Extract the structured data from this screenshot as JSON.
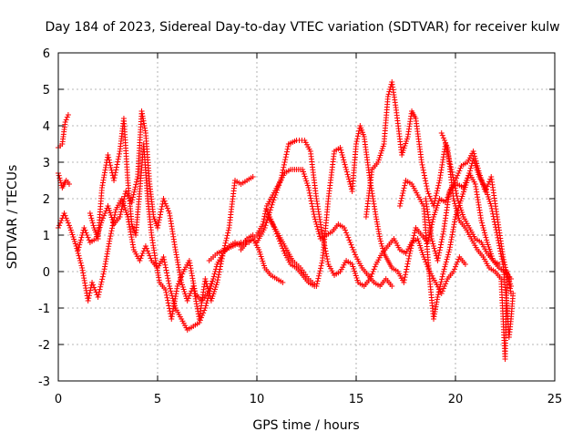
{
  "chart_data": {
    "type": "scatter",
    "title": "Day 184 of 2023, Sidereal Day-to-day VTEC variation (SDTVAR) for receiver kulw",
    "xlabel": "GPS time / hours",
    "ylabel": "SDTVAR / TECUs",
    "xlim": [
      0,
      25
    ],
    "ylim": [
      -3,
      6
    ],
    "xticks": [
      0,
      5,
      10,
      15,
      20,
      25
    ],
    "yticks": [
      -3,
      -2,
      -1,
      0,
      1,
      2,
      3,
      4,
      5,
      6
    ],
    "grid": true,
    "marker": "+",
    "color": "#ff0000",
    "series": [
      {
        "name": "track-1",
        "points": [
          [
            0.0,
            3.4
          ],
          [
            0.2,
            3.5
          ],
          [
            0.35,
            4.1
          ],
          [
            0.5,
            4.3
          ]
        ]
      },
      {
        "name": "track-2",
        "points": [
          [
            0.0,
            2.7
          ],
          [
            0.2,
            2.3
          ],
          [
            0.4,
            2.5
          ],
          [
            0.55,
            2.4
          ]
        ]
      },
      {
        "name": "track-3",
        "points": [
          [
            0.0,
            1.2
          ],
          [
            0.3,
            1.6
          ],
          [
            0.6,
            1.2
          ],
          [
            0.9,
            0.7
          ],
          [
            1.2,
            0.1
          ],
          [
            1.5,
            -0.8
          ],
          [
            1.7,
            -0.3
          ],
          [
            2.0,
            -0.7
          ],
          [
            2.3,
            0.0
          ],
          [
            2.6,
            0.9
          ],
          [
            2.9,
            1.7
          ],
          [
            3.2,
            2.0
          ],
          [
            3.5,
            1.5
          ],
          [
            3.8,
            0.6
          ],
          [
            4.1,
            0.3
          ],
          [
            4.4,
            0.7
          ],
          [
            4.7,
            0.3
          ],
          [
            5.0,
            0.1
          ],
          [
            5.3,
            0.4
          ],
          [
            5.6,
            -0.4
          ],
          [
            5.9,
            -1.0
          ],
          [
            6.2,
            -1.3
          ],
          [
            6.5,
            -1.6
          ],
          [
            6.8,
            -1.5
          ],
          [
            7.1,
            -1.4
          ],
          [
            7.4,
            -1.0
          ],
          [
            7.7,
            -0.4
          ],
          [
            8.0,
            0.2
          ],
          [
            8.3,
            0.5
          ],
          [
            8.6,
            0.7
          ],
          [
            8.9,
            0.8
          ],
          [
            9.2,
            0.7
          ],
          [
            9.5,
            0.9
          ],
          [
            9.8,
            1.0
          ]
        ]
      },
      {
        "name": "track-4",
        "points": [
          [
            1.6,
            1.6
          ],
          [
            1.8,
            1.2
          ],
          [
            2.0,
            0.9
          ],
          [
            2.2,
            2.3
          ],
          [
            2.5,
            3.2
          ],
          [
            2.8,
            2.5
          ],
          [
            3.1,
            3.3
          ],
          [
            3.3,
            4.2
          ],
          [
            3.5,
            2.5
          ],
          [
            3.7,
            1.3
          ],
          [
            3.9,
            1.0
          ],
          [
            4.1,
            2.2
          ],
          [
            4.3,
            3.5
          ],
          [
            4.5,
            2.0
          ],
          [
            4.7,
            1.0
          ],
          [
            4.9,
            0.3
          ],
          [
            5.1,
            -0.3
          ],
          [
            5.4,
            -0.5
          ],
          [
            5.7,
            -1.3
          ],
          [
            6.0,
            -0.4
          ],
          [
            6.3,
            0.0
          ],
          [
            6.6,
            0.3
          ],
          [
            6.9,
            -0.6
          ],
          [
            7.2,
            -0.8
          ],
          [
            7.5,
            -0.6
          ],
          [
            7.8,
            -0.2
          ]
        ]
      },
      {
        "name": "track-5",
        "points": [
          [
            1.0,
            0.6
          ],
          [
            1.3,
            1.2
          ],
          [
            1.6,
            0.8
          ],
          [
            1.9,
            0.9
          ],
          [
            2.2,
            1.4
          ],
          [
            2.5,
            1.8
          ],
          [
            2.8,
            1.3
          ],
          [
            3.1,
            1.5
          ],
          [
            3.4,
            2.2
          ],
          [
            3.7,
            1.9
          ],
          [
            4.0,
            2.6
          ],
          [
            4.2,
            4.4
          ],
          [
            4.4,
            3.8
          ],
          [
            4.6,
            2.4
          ],
          [
            4.8,
            1.5
          ],
          [
            5.0,
            1.2
          ],
          [
            5.3,
            2.0
          ],
          [
            5.6,
            1.6
          ],
          [
            5.9,
            0.6
          ],
          [
            6.2,
            -0.3
          ],
          [
            6.5,
            -0.8
          ],
          [
            6.8,
            -0.4
          ],
          [
            7.1,
            -1.3
          ],
          [
            7.4,
            -0.2
          ],
          [
            7.7,
            -0.8
          ],
          [
            8.0,
            -0.3
          ],
          [
            8.3,
            0.5
          ],
          [
            8.6,
            1.2
          ],
          [
            8.9,
            2.5
          ],
          [
            9.2,
            2.4
          ],
          [
            9.5,
            2.5
          ],
          [
            9.8,
            2.6
          ]
        ]
      },
      {
        "name": "track-6",
        "points": [
          [
            7.6,
            0.3
          ],
          [
            8.0,
            0.5
          ],
          [
            8.4,
            0.6
          ],
          [
            8.8,
            0.7
          ],
          [
            9.2,
            0.8
          ],
          [
            9.6,
            0.8
          ],
          [
            10.0,
            1.0
          ],
          [
            10.3,
            1.3
          ],
          [
            10.5,
            1.8
          ],
          [
            10.8,
            2.1
          ],
          [
            11.1,
            2.4
          ],
          [
            11.4,
            2.7
          ],
          [
            11.7,
            2.8
          ],
          [
            12.0,
            2.8
          ],
          [
            12.3,
            2.8
          ],
          [
            12.6,
            2.3
          ],
          [
            12.9,
            1.5
          ],
          [
            13.2,
            0.9
          ],
          [
            13.5,
            1.0
          ],
          [
            13.8,
            1.1
          ],
          [
            14.1,
            1.3
          ],
          [
            14.4,
            1.2
          ],
          [
            14.7,
            0.8
          ],
          [
            15.0,
            0.4
          ],
          [
            15.3,
            0.1
          ],
          [
            15.6,
            -0.1
          ],
          [
            15.9,
            -0.3
          ],
          [
            16.2,
            -0.4
          ],
          [
            16.5,
            -0.2
          ],
          [
            16.8,
            -0.4
          ]
        ]
      },
      {
        "name": "track-7",
        "points": [
          [
            10.0,
            0.8
          ],
          [
            10.4,
            1.2
          ],
          [
            10.8,
            1.9
          ],
          [
            11.2,
            2.5
          ],
          [
            11.6,
            3.5
          ],
          [
            12.0,
            3.6
          ],
          [
            12.4,
            3.6
          ],
          [
            12.7,
            3.3
          ],
          [
            13.0,
            2.0
          ],
          [
            13.3,
            1.0
          ],
          [
            13.6,
            0.2
          ],
          [
            13.9,
            -0.1
          ],
          [
            14.2,
            0.0
          ],
          [
            14.5,
            0.3
          ],
          [
            14.8,
            0.2
          ],
          [
            15.1,
            -0.3
          ],
          [
            15.4,
            -0.4
          ],
          [
            15.7,
            -0.2
          ],
          [
            16.0,
            0.2
          ],
          [
            16.3,
            0.5
          ],
          [
            16.6,
            0.7
          ],
          [
            16.9,
            0.9
          ],
          [
            17.2,
            0.6
          ],
          [
            17.5,
            0.5
          ],
          [
            17.8,
            0.8
          ],
          [
            18.1,
            0.9
          ],
          [
            18.4,
            0.4
          ],
          [
            18.7,
            0.0
          ],
          [
            19.0,
            -0.3
          ],
          [
            19.3,
            -0.6
          ],
          [
            19.6,
            -0.2
          ],
          [
            19.9,
            0.0
          ],
          [
            20.2,
            0.4
          ],
          [
            20.5,
            0.2
          ]
        ]
      },
      {
        "name": "track-8",
        "points": [
          [
            10.6,
            1.5
          ],
          [
            11.0,
            1.1
          ],
          [
            11.4,
            0.7
          ],
          [
            11.8,
            0.3
          ],
          [
            12.2,
            0.1
          ],
          [
            12.6,
            -0.2
          ],
          [
            13.0,
            -0.4
          ],
          [
            13.3,
            0.3
          ],
          [
            13.6,
            2.0
          ],
          [
            13.9,
            3.3
          ],
          [
            14.2,
            3.4
          ],
          [
            14.5,
            2.8
          ],
          [
            14.8,
            2.2
          ],
          [
            15.0,
            3.5
          ],
          [
            15.2,
            4.0
          ],
          [
            15.4,
            3.7
          ],
          [
            15.7,
            2.5
          ],
          [
            16.0,
            1.5
          ],
          [
            16.2,
            0.9
          ],
          [
            16.4,
            0.5
          ],
          [
            16.6,
            0.3
          ],
          [
            16.8,
            0.1
          ],
          [
            17.1,
            0.0
          ],
          [
            17.4,
            -0.3
          ],
          [
            17.7,
            0.5
          ],
          [
            18.0,
            1.2
          ],
          [
            18.3,
            1.0
          ],
          [
            18.6,
            0.8
          ],
          [
            18.9,
            1.5
          ],
          [
            19.2,
            2.0
          ],
          [
            19.5,
            1.9
          ],
          [
            19.8,
            2.3
          ],
          [
            20.1,
            2.4
          ],
          [
            20.4,
            2.3
          ],
          [
            20.7,
            2.7
          ],
          [
            21.0,
            2.4
          ],
          [
            21.3,
            1.4
          ],
          [
            21.6,
            0.8
          ],
          [
            21.9,
            0.3
          ],
          [
            22.2,
            0.2
          ]
        ]
      },
      {
        "name": "track-9",
        "points": [
          [
            9.2,
            0.6
          ],
          [
            9.5,
            0.8
          ],
          [
            9.8,
            0.9
          ],
          [
            10.1,
            0.6
          ],
          [
            10.4,
            0.1
          ],
          [
            10.7,
            -0.1
          ],
          [
            11.0,
            -0.2
          ],
          [
            11.3,
            -0.3
          ]
        ]
      },
      {
        "name": "track-10",
        "points": [
          [
            10.5,
            1.7
          ],
          [
            10.8,
            1.3
          ],
          [
            11.1,
            0.9
          ],
          [
            11.4,
            0.5
          ],
          [
            11.7,
            0.2
          ],
          [
            12.0,
            0.1
          ],
          [
            12.3,
            -0.1
          ],
          [
            12.6,
            -0.3
          ],
          [
            12.9,
            -0.4
          ]
        ]
      },
      {
        "name": "track-11",
        "points": [
          [
            15.5,
            1.5
          ],
          [
            15.8,
            2.8
          ],
          [
            16.1,
            3.0
          ],
          [
            16.4,
            3.5
          ],
          [
            16.6,
            4.8
          ],
          [
            16.8,
            5.2
          ],
          [
            17.0,
            4.5
          ],
          [
            17.3,
            3.2
          ],
          [
            17.6,
            3.7
          ],
          [
            17.8,
            4.4
          ],
          [
            18.0,
            4.2
          ],
          [
            18.3,
            3.0
          ],
          [
            18.6,
            2.2
          ],
          [
            18.9,
            1.8
          ],
          [
            19.2,
            2.5
          ],
          [
            19.5,
            3.5
          ],
          [
            19.8,
            2.8
          ],
          [
            20.1,
            2.0
          ],
          [
            20.4,
            1.5
          ],
          [
            20.7,
            1.2
          ],
          [
            21.0,
            0.9
          ],
          [
            21.3,
            0.8
          ],
          [
            21.6,
            0.5
          ],
          [
            21.9,
            0.3
          ],
          [
            22.2,
            0.1
          ],
          [
            22.5,
            0.0
          ],
          [
            22.8,
            -0.2
          ]
        ]
      },
      {
        "name": "track-12",
        "points": [
          [
            17.2,
            1.8
          ],
          [
            17.5,
            2.5
          ],
          [
            17.8,
            2.4
          ],
          [
            18.1,
            2.1
          ],
          [
            18.4,
            1.8
          ],
          [
            18.7,
            -0.2
          ],
          [
            18.9,
            -1.3
          ],
          [
            19.1,
            -0.7
          ],
          [
            19.4,
            0.0
          ],
          [
            19.7,
            0.6
          ],
          [
            20.0,
            1.5
          ],
          [
            20.3,
            2.0
          ],
          [
            20.6,
            2.5
          ],
          [
            20.9,
            3.1
          ],
          [
            21.2,
            2.6
          ],
          [
            21.5,
            2.3
          ],
          [
            21.8,
            1.8
          ],
          [
            22.1,
            1.0
          ],
          [
            22.4,
            0.2
          ],
          [
            22.6,
            -1.0
          ],
          [
            22.7,
            -1.8
          ],
          [
            22.8,
            -1.3
          ],
          [
            22.9,
            -0.6
          ]
        ]
      },
      {
        "name": "track-13",
        "points": [
          [
            18.5,
            2.0
          ],
          [
            18.8,
            0.9
          ],
          [
            19.1,
            0.3
          ],
          [
            19.4,
            1.1
          ],
          [
            19.7,
            2.2
          ],
          [
            20.0,
            2.5
          ],
          [
            20.3,
            2.9
          ],
          [
            20.6,
            3.0
          ],
          [
            20.9,
            3.3
          ],
          [
            21.2,
            2.7
          ],
          [
            21.5,
            2.2
          ],
          [
            21.8,
            2.6
          ],
          [
            22.1,
            1.5
          ],
          [
            22.4,
            0.4
          ],
          [
            22.6,
            -0.1
          ],
          [
            22.8,
            -0.4
          ]
        ]
      },
      {
        "name": "track-14",
        "points": [
          [
            19.3,
            3.8
          ],
          [
            19.6,
            3.4
          ],
          [
            19.9,
            2.0
          ],
          [
            20.2,
            1.4
          ],
          [
            20.5,
            1.2
          ],
          [
            20.8,
            0.9
          ],
          [
            21.1,
            0.6
          ],
          [
            21.4,
            0.4
          ],
          [
            21.7,
            0.1
          ],
          [
            22.0,
            0.0
          ],
          [
            22.3,
            -0.2
          ],
          [
            22.5,
            -2.4
          ],
          [
            22.6,
            0.0
          ],
          [
            22.8,
            -0.6
          ]
        ]
      }
    ]
  }
}
